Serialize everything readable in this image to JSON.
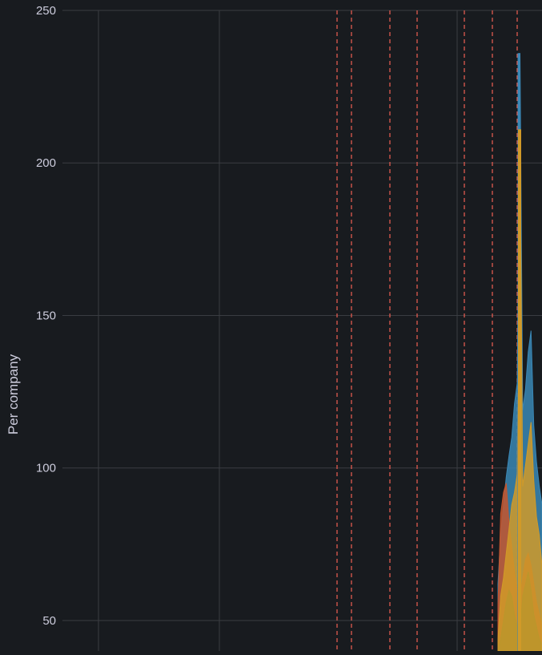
{
  "chart_data": {
    "type": "area",
    "title": "",
    "ylabel": "Per company",
    "ylim": [
      40,
      250
    ],
    "yticks": [
      50,
      100,
      150,
      200,
      250
    ],
    "ytick_labels": [
      "50",
      "100",
      "150",
      "200",
      "250"
    ],
    "grid": true,
    "annotations": {
      "type": "vertical-dashed-markers",
      "color": "#e05a4f",
      "count": 7
    },
    "series": [
      {
        "color": "#3a87b5",
        "peak": 236,
        "values": [
          62,
          78,
          88,
          97,
          104,
          110,
          121,
          128,
          236,
          119,
          126,
          138,
          145,
          114,
          102,
          94,
          88
        ]
      },
      {
        "color": "#d19a28",
        "peak": 211,
        "values": [
          44,
          58,
          64,
          72,
          80,
          88,
          92,
          98,
          211,
          94,
          101,
          108,
          115,
          96,
          84,
          78,
          68
        ]
      },
      {
        "color": "#3e7f3e",
        "peak": 66,
        "values": [
          40,
          44,
          50,
          56,
          60,
          58,
          52,
          48,
          46,
          58,
          62,
          66,
          60,
          52,
          48,
          44,
          42
        ]
      },
      {
        "color": "#c4552d",
        "peak": 95,
        "values": [
          55,
          85,
          92,
          95,
          82,
          74,
          66,
          60,
          58,
          64,
          70,
          72,
          68,
          62,
          56,
          52,
          48
        ]
      }
    ],
    "colors": {
      "background": "#181b1f",
      "grid": "#3a3d42",
      "axis_text": "#ccccdc",
      "marker": "#e05a4f"
    }
  }
}
